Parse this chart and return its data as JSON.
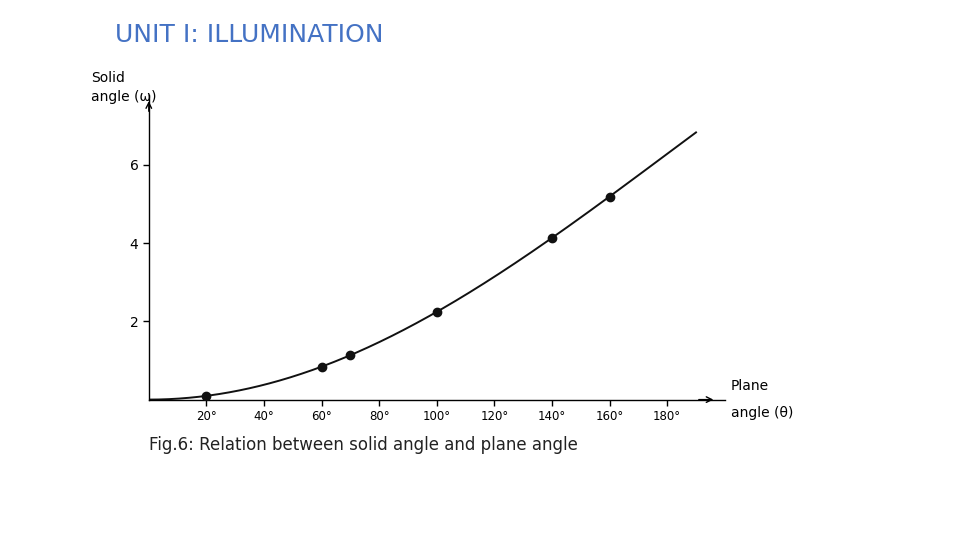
{
  "title": "UNIT I: ILLUMINATION",
  "title_color": "#4472C4",
  "title_fontsize": 18,
  "caption": "Fig.6: Relation between solid angle and plane angle",
  "caption_fontsize": 12,
  "ylabel_line1": "Solid",
  "ylabel_line2": "angle (ω)",
  "xlabel_line1": "Plane",
  "xlabel_line2": "angle (θ)",
  "xlabel_fontsize": 10,
  "ylabel_fontsize": 10,
  "yticks": [
    2,
    4,
    6
  ],
  "xtick_degrees": [
    20,
    40,
    60,
    80,
    100,
    120,
    140,
    160,
    180
  ],
  "dot_degrees": [
    20,
    60,
    70,
    100,
    140,
    160
  ],
  "ylim": [
    0,
    7.8
  ],
  "xlim_deg": [
    0,
    200
  ],
  "top_bar_color": "#3d5a99",
  "bottom_bar_color": "#4f5b8f",
  "background_color": "#ffffff",
  "curve_color": "#111111",
  "dot_color": "#111111",
  "dot_size": 6
}
